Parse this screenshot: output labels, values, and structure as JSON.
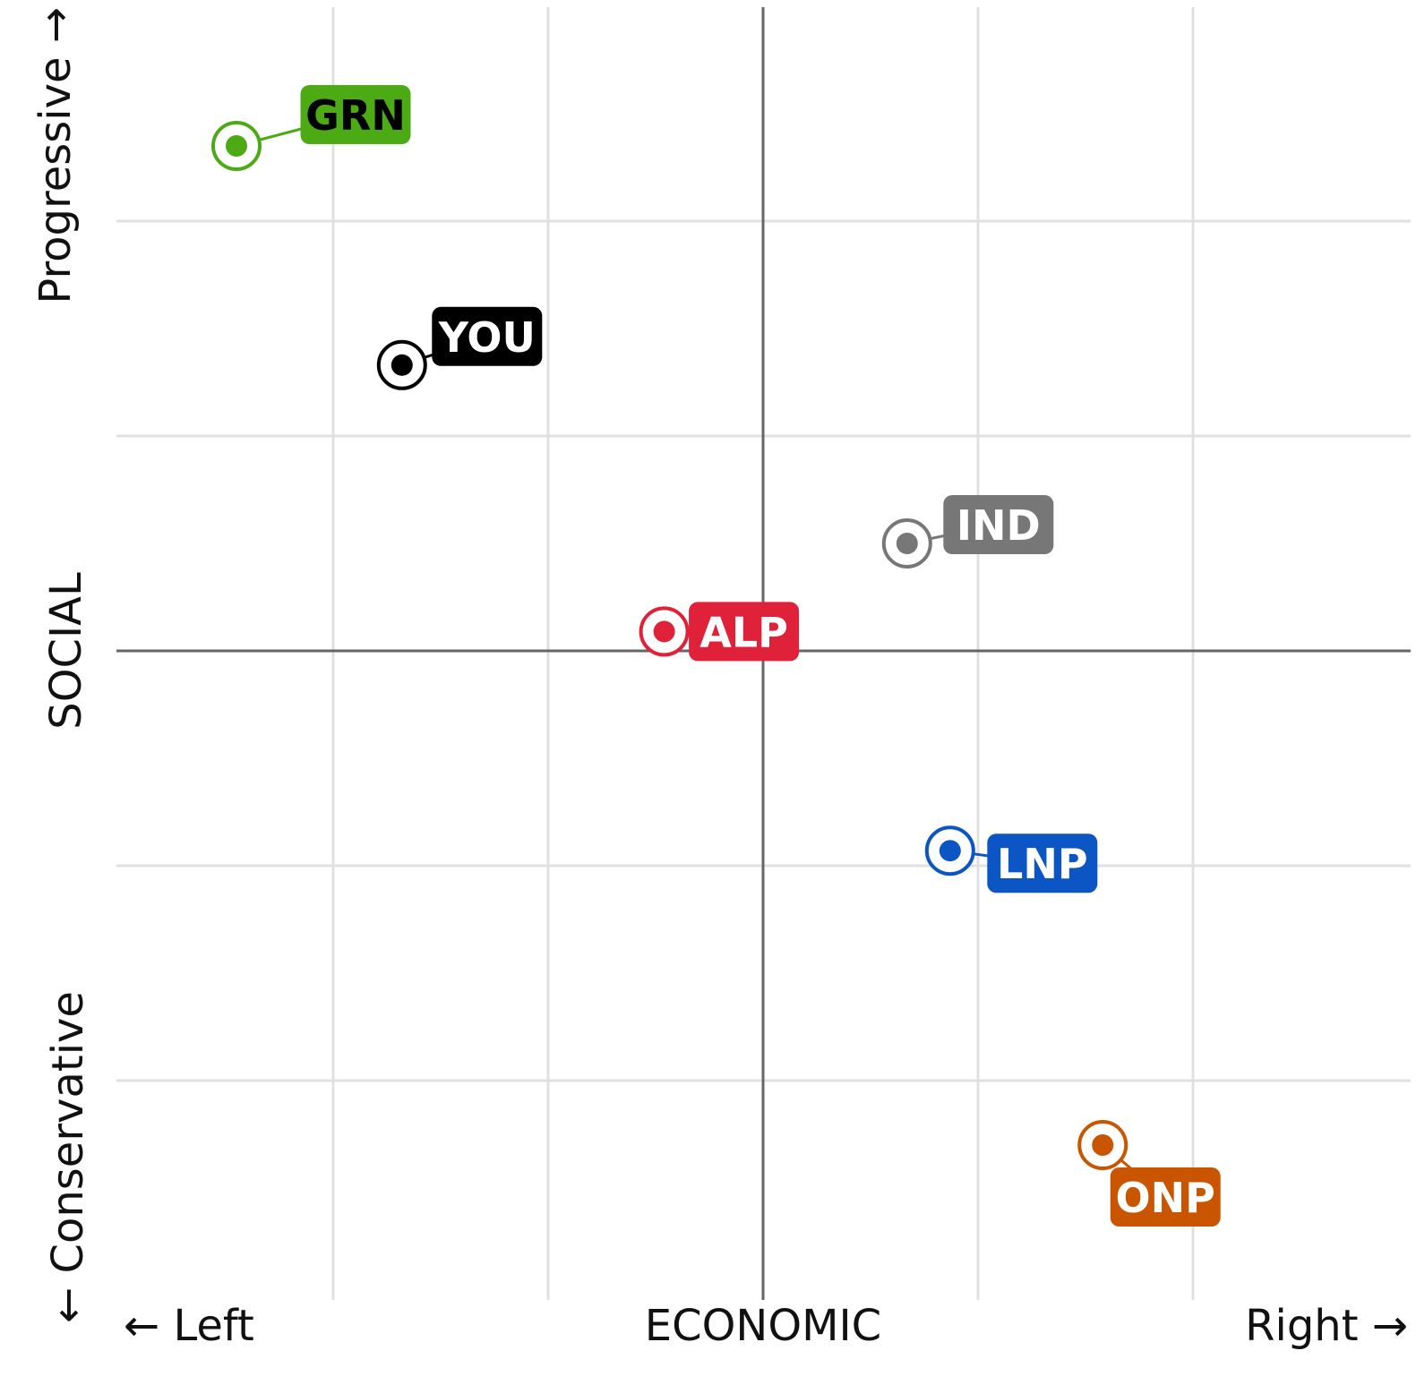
{
  "chart_data": {
    "type": "scatter",
    "title": "",
    "xlabel": "ECONOMIC",
    "ylabel": "SOCIAL",
    "x_left_label": "← Left",
    "x_right_label": "Right →",
    "y_top_label": "Progressive →",
    "y_bottom_label": "← Conservative",
    "xlim": [
      -3,
      3
    ],
    "ylim": [
      -3,
      3
    ],
    "grid": true,
    "points": [
      {
        "name": "GRN",
        "x": -2.45,
        "y": 2.35,
        "color": "#4caa14",
        "label_color": "#000000"
      },
      {
        "name": "YOU",
        "x": -1.68,
        "y": 1.33,
        "color": "#000000",
        "label_color": "#ffffff"
      },
      {
        "name": "IND",
        "x": 0.67,
        "y": 0.5,
        "color": "#777777",
        "label_color": "#ffffff"
      },
      {
        "name": "ALP",
        "x": -0.46,
        "y": 0.09,
        "color": "#e0213a",
        "label_color": "#ffffff"
      },
      {
        "name": "LNP",
        "x": 0.87,
        "y": -0.93,
        "color": "#0c55c5",
        "label_color": "#ffffff"
      },
      {
        "name": "ONP",
        "x": 1.58,
        "y": -2.3,
        "color": "#c95500",
        "label_color": "#ffffff"
      }
    ]
  }
}
